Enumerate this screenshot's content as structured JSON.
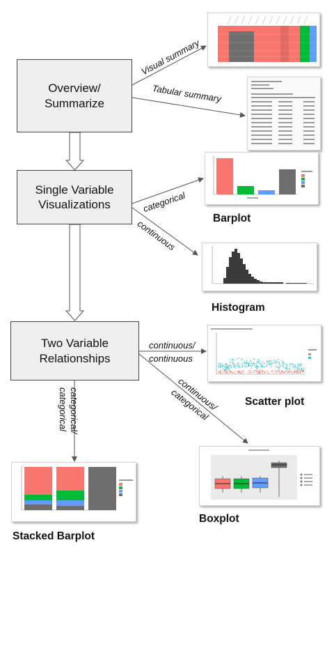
{
  "nodes": {
    "overview": "Overview/\nSummarize",
    "single": "Single Variable\nVisualizations",
    "two": "Two Variable\nRelationships"
  },
  "edges": {
    "visual_summary": "Visual summary",
    "tabular_summary": "Tabular summary",
    "categorical": "categorical",
    "continuous": "continuous",
    "cont_cont_1": "continuous/",
    "cont_cont_2": "continuous",
    "cont_cat_1": "continuous/",
    "cont_cat_2": "categorical",
    "cat_cat_1": "categorical/",
    "cat_cat_2": "categorical"
  },
  "captions": {
    "barplot": "Barplot",
    "histogram": "Histogram",
    "scatter": "Scatter plot",
    "boxplot": "Boxplot",
    "stacked": "Stacked Barplot"
  },
  "colors": {
    "red": "#f8766d",
    "green": "#00ba38",
    "blue": "#619cff",
    "gray": "#7f7f7f",
    "teal": "#2ec4c4",
    "dark": "#3a3a3a"
  }
}
